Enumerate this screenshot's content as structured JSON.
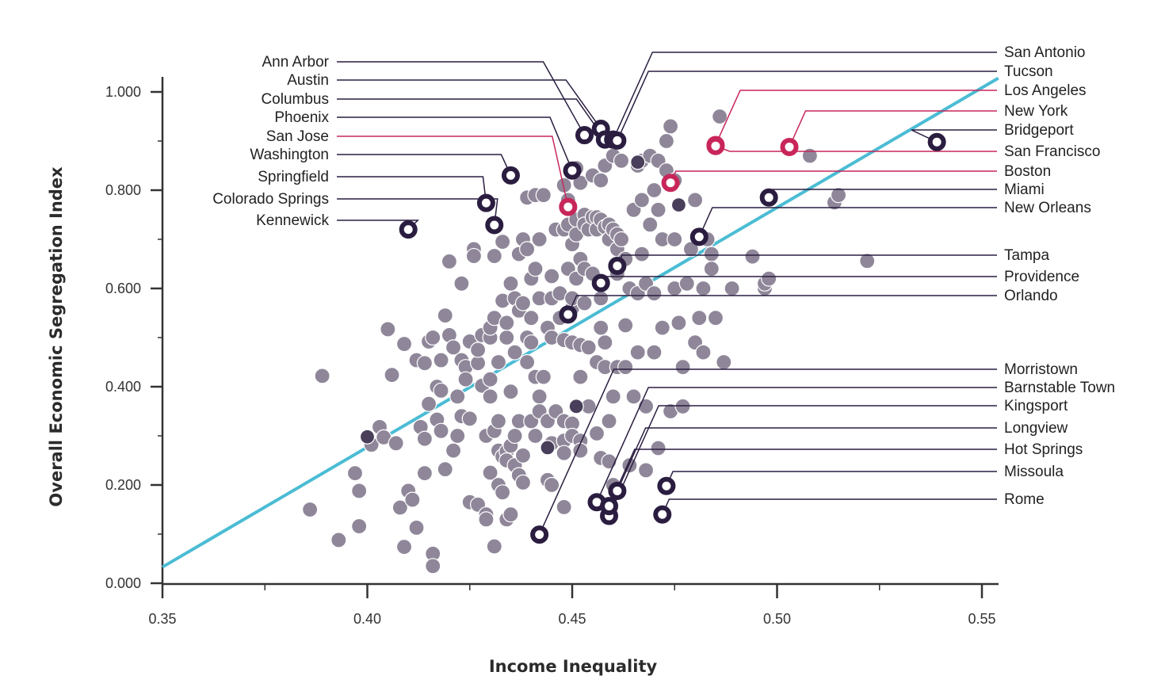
{
  "chart_data": {
    "type": "scatter",
    "title": "",
    "xlabel": "Income Inequality",
    "ylabel": "Overall Economic Segregation Index",
    "xlim": [
      0.35,
      0.555
    ],
    "ylim": [
      0.0,
      1.0
    ],
    "x_ticks": [
      "0.35",
      "0.40",
      "0.45",
      "0.50",
      "0.55"
    ],
    "y_ticks": [
      "0.000",
      "0.200",
      "0.400",
      "0.600",
      "0.800",
      "1.000"
    ],
    "grid": false,
    "trendline": {
      "color": "#4bbcd4",
      "from": [
        0.35,
        0.033
      ],
      "to": [
        0.554,
        1.028
      ]
    },
    "colors": {
      "background_point": "#8f8799",
      "highlight_dark": "#2a1d40",
      "highlight_red": "#c8265a"
    },
    "highlighted": [
      {
        "name": "Ann Arbor",
        "x": 0.453,
        "y": 0.912,
        "color": "dark",
        "side": "left"
      },
      {
        "name": "Austin",
        "x": 0.457,
        "y": 0.925,
        "color": "dark",
        "side": "left"
      },
      {
        "name": "Columbus",
        "x": 0.458,
        "y": 0.903,
        "color": "dark",
        "side": "left"
      },
      {
        "name": "Phoenix",
        "x": 0.45,
        "y": 0.84,
        "color": "dark",
        "side": "left"
      },
      {
        "name": "San Jose",
        "x": 0.449,
        "y": 0.766,
        "color": "red",
        "side": "left"
      },
      {
        "name": "Washington",
        "x": 0.435,
        "y": 0.83,
        "color": "dark",
        "side": "left"
      },
      {
        "name": "Springfield",
        "x": 0.429,
        "y": 0.774,
        "color": "dark",
        "side": "left"
      },
      {
        "name": "Colorado Springs",
        "x": 0.431,
        "y": 0.729,
        "color": "dark",
        "side": "left"
      },
      {
        "name": "Kennewick",
        "x": 0.41,
        "y": 0.72,
        "color": "dark",
        "side": "left"
      },
      {
        "name": "San Antonio",
        "x": 0.46,
        "y": 0.903,
        "color": "dark",
        "side": "right"
      },
      {
        "name": "Tucson",
        "x": 0.461,
        "y": 0.901,
        "color": "dark",
        "side": "right"
      },
      {
        "name": "Los Angeles",
        "x": 0.485,
        "y": 0.892,
        "color": "red",
        "side": "right"
      },
      {
        "name": "New York",
        "x": 0.503,
        "y": 0.888,
        "color": "red",
        "side": "right"
      },
      {
        "name": "Bridgeport",
        "x": 0.539,
        "y": 0.898,
        "color": "dark",
        "side": "right"
      },
      {
        "name": "San Francisco",
        "x": 0.485,
        "y": 0.89,
        "color": "red",
        "side": "right"
      },
      {
        "name": "Boston",
        "x": 0.474,
        "y": 0.815,
        "color": "red",
        "side": "right"
      },
      {
        "name": "Miami",
        "x": 0.498,
        "y": 0.785,
        "color": "dark",
        "side": "right"
      },
      {
        "name": "New Orleans",
        "x": 0.481,
        "y": 0.705,
        "color": "dark",
        "side": "right"
      },
      {
        "name": "Tampa",
        "x": 0.461,
        "y": 0.646,
        "color": "dark",
        "side": "right"
      },
      {
        "name": "Providence",
        "x": 0.457,
        "y": 0.611,
        "color": "dark",
        "side": "right"
      },
      {
        "name": "Orlando",
        "x": 0.449,
        "y": 0.547,
        "color": "dark",
        "side": "right"
      },
      {
        "name": "Morristown",
        "x": 0.442,
        "y": 0.099,
        "color": "dark",
        "side": "right"
      },
      {
        "name": "Barnstable Town",
        "x": 0.456,
        "y": 0.165,
        "color": "dark",
        "side": "right"
      },
      {
        "name": "Kingsport",
        "x": 0.459,
        "y": 0.137,
        "color": "dark",
        "side": "right"
      },
      {
        "name": "Longview",
        "x": 0.461,
        "y": 0.188,
        "color": "dark",
        "side": "right"
      },
      {
        "name": "Hot Springs",
        "x": 0.459,
        "y": 0.157,
        "color": "dark",
        "side": "right"
      },
      {
        "name": "Missoula",
        "x": 0.473,
        "y": 0.198,
        "color": "dark",
        "side": "right"
      },
      {
        "name": "Rome",
        "x": 0.472,
        "y": 0.14,
        "color": "dark",
        "side": "right"
      }
    ],
    "points": [
      [
        0.389,
        0.422
      ],
      [
        0.386,
        0.15
      ],
      [
        0.393,
        0.088
      ],
      [
        0.397,
        0.224
      ],
      [
        0.398,
        0.188
      ],
      [
        0.398,
        0.116
      ],
      [
        0.4,
        0.297
      ],
      [
        0.401,
        0.282
      ],
      [
        0.403,
        0.318
      ],
      [
        0.404,
        0.297
      ],
      [
        0.405,
        0.517
      ],
      [
        0.406,
        0.424
      ],
      [
        0.407,
        0.285
      ],
      [
        0.408,
        0.154
      ],
      [
        0.409,
        0.487
      ],
      [
        0.409,
        0.074
      ],
      [
        0.41,
        0.188
      ],
      [
        0.411,
        0.17
      ],
      [
        0.412,
        0.113
      ],
      [
        0.412,
        0.454
      ],
      [
        0.413,
        0.318
      ],
      [
        0.414,
        0.294
      ],
      [
        0.414,
        0.224
      ],
      [
        0.414,
        0.448
      ],
      [
        0.415,
        0.492
      ],
      [
        0.415,
        0.365
      ],
      [
        0.416,
        0.06
      ],
      [
        0.416,
        0.035
      ],
      [
        0.416,
        0.5
      ],
      [
        0.417,
        0.333
      ],
      [
        0.417,
        0.4
      ],
      [
        0.418,
        0.31
      ],
      [
        0.418,
        0.454
      ],
      [
        0.418,
        0.392
      ],
      [
        0.419,
        0.232
      ],
      [
        0.419,
        0.545
      ],
      [
        0.42,
        0.505
      ],
      [
        0.42,
        0.655
      ],
      [
        0.421,
        0.27
      ],
      [
        0.421,
        0.48
      ],
      [
        0.422,
        0.38
      ],
      [
        0.422,
        0.3
      ],
      [
        0.423,
        0.34
      ],
      [
        0.423,
        0.61
      ],
      [
        0.423,
        0.454
      ],
      [
        0.424,
        0.44
      ],
      [
        0.424,
        0.415
      ],
      [
        0.425,
        0.335
      ],
      [
        0.425,
        0.165
      ],
      [
        0.425,
        0.492
      ],
      [
        0.426,
        0.68
      ],
      [
        0.426,
        0.666
      ],
      [
        0.427,
        0.16
      ],
      [
        0.427,
        0.448
      ],
      [
        0.427,
        0.475
      ],
      [
        0.428,
        0.505
      ],
      [
        0.428,
        0.402
      ],
      [
        0.429,
        0.3
      ],
      [
        0.429,
        0.14
      ],
      [
        0.429,
        0.13
      ],
      [
        0.43,
        0.5
      ],
      [
        0.43,
        0.52
      ],
      [
        0.43,
        0.415
      ],
      [
        0.43,
        0.38
      ],
      [
        0.43,
        0.225
      ],
      [
        0.431,
        0.666
      ],
      [
        0.431,
        0.31
      ],
      [
        0.431,
        0.075
      ],
      [
        0.431,
        0.54
      ],
      [
        0.432,
        0.33
      ],
      [
        0.432,
        0.45
      ],
      [
        0.432,
        0.2
      ],
      [
        0.432,
        0.27
      ],
      [
        0.433,
        0.258
      ],
      [
        0.433,
        0.185
      ],
      [
        0.433,
        0.575
      ],
      [
        0.433,
        0.695
      ],
      [
        0.434,
        0.268
      ],
      [
        0.434,
        0.13
      ],
      [
        0.434,
        0.5
      ],
      [
        0.434,
        0.25
      ],
      [
        0.434,
        0.53
      ],
      [
        0.435,
        0.28
      ],
      [
        0.435,
        0.61
      ],
      [
        0.435,
        0.39
      ],
      [
        0.435,
        0.14
      ],
      [
        0.436,
        0.24
      ],
      [
        0.436,
        0.58
      ],
      [
        0.436,
        0.3
      ],
      [
        0.436,
        0.47
      ],
      [
        0.437,
        0.67
      ],
      [
        0.437,
        0.22
      ],
      [
        0.437,
        0.555
      ],
      [
        0.437,
        0.33
      ],
      [
        0.438,
        0.7
      ],
      [
        0.438,
        0.205
      ],
      [
        0.438,
        0.26
      ],
      [
        0.438,
        0.57
      ],
      [
        0.439,
        0.785
      ],
      [
        0.439,
        0.68
      ],
      [
        0.439,
        0.45
      ],
      [
        0.439,
        0.5
      ],
      [
        0.44,
        0.54
      ],
      [
        0.44,
        0.33
      ],
      [
        0.44,
        0.49
      ],
      [
        0.44,
        0.62
      ],
      [
        0.441,
        0.79
      ],
      [
        0.441,
        0.64
      ],
      [
        0.441,
        0.42
      ],
      [
        0.441,
        0.3
      ],
      [
        0.442,
        0.38
      ],
      [
        0.442,
        0.58
      ],
      [
        0.442,
        0.35
      ],
      [
        0.442,
        0.7
      ],
      [
        0.443,
        0.79
      ],
      [
        0.443,
        0.42
      ],
      [
        0.444,
        0.52
      ],
      [
        0.444,
        0.33
      ],
      [
        0.444,
        0.21
      ],
      [
        0.445,
        0.5
      ],
      [
        0.445,
        0.625
      ],
      [
        0.445,
        0.58
      ],
      [
        0.445,
        0.2
      ],
      [
        0.445,
        0.285
      ],
      [
        0.446,
        0.72
      ],
      [
        0.446,
        0.35
      ],
      [
        0.447,
        0.54
      ],
      [
        0.447,
        0.59
      ],
      [
        0.448,
        0.33
      ],
      [
        0.448,
        0.29
      ],
      [
        0.448,
        0.81
      ],
      [
        0.448,
        0.155
      ],
      [
        0.448,
        0.72
      ],
      [
        0.448,
        0.495
      ],
      [
        0.448,
        0.265
      ],
      [
        0.449,
        0.78
      ],
      [
        0.449,
        0.64
      ],
      [
        0.449,
        0.73
      ],
      [
        0.45,
        0.56
      ],
      [
        0.45,
        0.69
      ],
      [
        0.45,
        0.58
      ],
      [
        0.45,
        0.49
      ],
      [
        0.45,
        0.325
      ],
      [
        0.45,
        0.3
      ],
      [
        0.451,
        0.74
      ],
      [
        0.451,
        0.62
      ],
      [
        0.451,
        0.71
      ],
      [
        0.451,
        0.845
      ],
      [
        0.452,
        0.66
      ],
      [
        0.452,
        0.42
      ],
      [
        0.452,
        0.815
      ],
      [
        0.452,
        0.29
      ],
      [
        0.452,
        0.27
      ],
      [
        0.452,
        0.485
      ],
      [
        0.453,
        0.75
      ],
      [
        0.453,
        0.73
      ],
      [
        0.453,
        0.64
      ],
      [
        0.453,
        0.57
      ],
      [
        0.454,
        0.72
      ],
      [
        0.454,
        0.36
      ],
      [
        0.454,
        0.48
      ],
      [
        0.455,
        0.745
      ],
      [
        0.455,
        0.83
      ],
      [
        0.455,
        0.63
      ],
      [
        0.456,
        0.745
      ],
      [
        0.456,
        0.72
      ],
      [
        0.456,
        0.45
      ],
      [
        0.456,
        0.305
      ],
      [
        0.457,
        0.74
      ],
      [
        0.457,
        0.82
      ],
      [
        0.457,
        0.52
      ],
      [
        0.457,
        0.58
      ],
      [
        0.457,
        0.255
      ],
      [
        0.458,
        0.725
      ],
      [
        0.458,
        0.85
      ],
      [
        0.458,
        0.49
      ],
      [
        0.458,
        0.44
      ],
      [
        0.459,
        0.73
      ],
      [
        0.459,
        0.7
      ],
      [
        0.459,
        0.33
      ],
      [
        0.459,
        0.248
      ],
      [
        0.46,
        0.72
      ],
      [
        0.46,
        0.38
      ],
      [
        0.46,
        0.2
      ],
      [
        0.46,
        0.87
      ],
      [
        0.461,
        0.71
      ],
      [
        0.461,
        0.68
      ],
      [
        0.461,
        0.44
      ],
      [
        0.461,
        0.63
      ],
      [
        0.462,
        0.86
      ],
      [
        0.462,
        0.7
      ],
      [
        0.463,
        0.66
      ],
      [
        0.463,
        0.525
      ],
      [
        0.463,
        0.44
      ],
      [
        0.464,
        0.6
      ],
      [
        0.464,
        0.24
      ],
      [
        0.465,
        0.38
      ],
      [
        0.465,
        0.76
      ],
      [
        0.466,
        0.85
      ],
      [
        0.466,
        0.59
      ],
      [
        0.466,
        0.47
      ],
      [
        0.466,
        0.85
      ],
      [
        0.467,
        0.78
      ],
      [
        0.467,
        0.86
      ],
      [
        0.467,
        0.67
      ],
      [
        0.468,
        0.36
      ],
      [
        0.468,
        0.61
      ],
      [
        0.468,
        0.23
      ],
      [
        0.469,
        0.87
      ],
      [
        0.469,
        0.73
      ],
      [
        0.47,
        0.8
      ],
      [
        0.47,
        0.59
      ],
      [
        0.47,
        0.47
      ],
      [
        0.471,
        0.86
      ],
      [
        0.471,
        0.76
      ],
      [
        0.471,
        0.275
      ],
      [
        0.472,
        0.52
      ],
      [
        0.472,
        0.7
      ],
      [
        0.473,
        0.84
      ],
      [
        0.473,
        0.9
      ],
      [
        0.474,
        0.93
      ],
      [
        0.474,
        0.35
      ],
      [
        0.475,
        0.6
      ],
      [
        0.475,
        0.82
      ],
      [
        0.475,
        0.7
      ],
      [
        0.476,
        0.77
      ],
      [
        0.476,
        0.53
      ],
      [
        0.477,
        0.36
      ],
      [
        0.477,
        0.44
      ],
      [
        0.478,
        0.61
      ],
      [
        0.479,
        0.68
      ],
      [
        0.48,
        0.78
      ],
      [
        0.48,
        0.49
      ],
      [
        0.481,
        0.54
      ],
      [
        0.482,
        0.6
      ],
      [
        0.482,
        0.47
      ],
      [
        0.483,
        0.7
      ],
      [
        0.484,
        0.67
      ],
      [
        0.484,
        0.64
      ],
      [
        0.485,
        0.54
      ],
      [
        0.486,
        0.95
      ],
      [
        0.487,
        0.45
      ],
      [
        0.489,
        0.6
      ],
      [
        0.494,
        0.665
      ],
      [
        0.497,
        0.6
      ],
      [
        0.497,
        0.61
      ],
      [
        0.498,
        0.62
      ],
      [
        0.508,
        0.87
      ],
      [
        0.514,
        0.775
      ],
      [
        0.515,
        0.79
      ],
      [
        0.522,
        0.656
      ]
    ],
    "dark_points": [
      [
        0.4,
        0.298
      ],
      [
        0.444,
        0.276
      ],
      [
        0.451,
        0.36
      ],
      [
        0.466,
        0.857
      ],
      [
        0.476,
        0.77
      ]
    ]
  }
}
